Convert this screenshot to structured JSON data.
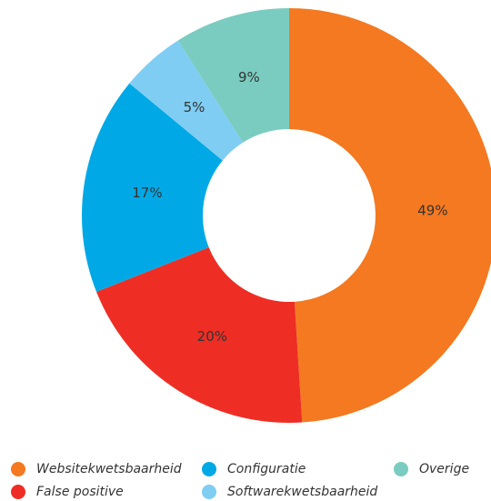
{
  "chart_data": {
    "type": "donut",
    "categories": [
      "Websitekwetsbaarheid",
      "False positive",
      "Configuratie",
      "Softwarekwetsbaarheid",
      "Overige"
    ],
    "values": [
      49,
      20,
      17,
      5,
      9
    ],
    "value_labels": [
      "49%",
      "20%",
      "17%",
      "5%",
      "9%"
    ],
    "colors": [
      "#f47920",
      "#ee2e24",
      "#00a9e6",
      "#7fcdf3",
      "#7accc0"
    ],
    "legend": "bottom"
  }
}
